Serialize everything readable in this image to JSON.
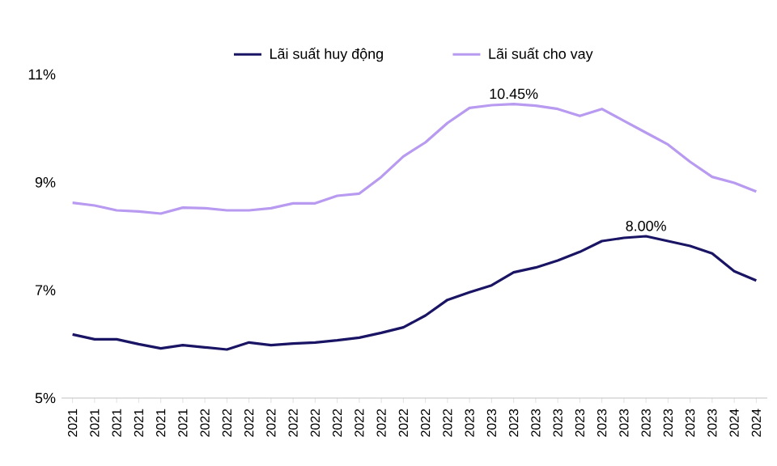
{
  "chart_data": {
    "type": "line",
    "categories": [
      "2021",
      "2021",
      "2021",
      "2021",
      "2021",
      "2021",
      "2022",
      "2022",
      "2022",
      "2022",
      "2022",
      "2022",
      "2022",
      "2022",
      "2022",
      "2022",
      "2022",
      "2022",
      "2023",
      "2023",
      "2023",
      "2023",
      "2023",
      "2023",
      "2023",
      "2023",
      "2023",
      "2023",
      "2023",
      "2023",
      "2024",
      "2024"
    ],
    "series": [
      {
        "name": "Lãi suất huy động",
        "color": "#1a1464",
        "values": [
          6.18,
          6.09,
          6.09,
          6.0,
          5.92,
          5.98,
          5.94,
          5.9,
          6.03,
          5.98,
          6.01,
          6.03,
          6.07,
          6.12,
          6.21,
          6.31,
          6.53,
          6.82,
          6.96,
          7.09,
          7.33,
          7.42,
          7.55,
          7.71,
          7.91,
          7.97,
          8.0,
          7.91,
          7.82,
          7.68,
          7.35,
          7.18
        ],
        "value_labels": [
          null,
          null,
          null,
          null,
          null,
          null,
          null,
          null,
          null,
          null,
          null,
          null,
          null,
          null,
          null,
          null,
          null,
          null,
          null,
          null,
          null,
          null,
          null,
          null,
          null,
          null,
          "8.00%",
          null,
          null,
          null,
          null,
          null
        ]
      },
      {
        "name": "Lãi suất cho vay",
        "color": "#b89af0",
        "values": [
          8.62,
          8.57,
          8.48,
          8.46,
          8.42,
          8.53,
          8.52,
          8.48,
          8.48,
          8.52,
          8.61,
          8.61,
          8.75,
          8.79,
          9.1,
          9.48,
          9.74,
          10.1,
          10.38,
          10.43,
          10.45,
          10.42,
          10.36,
          10.23,
          10.36,
          10.14,
          9.92,
          9.7,
          9.38,
          9.1,
          8.99,
          8.83
        ],
        "value_labels": [
          null,
          null,
          null,
          null,
          null,
          null,
          null,
          null,
          null,
          null,
          null,
          null,
          null,
          null,
          null,
          null,
          null,
          null,
          null,
          null,
          "10.45%",
          null,
          null,
          null,
          null,
          null,
          null,
          null,
          null,
          null,
          null,
          null
        ]
      }
    ],
    "ylim": [
      5,
      11
    ],
    "yticks": [
      {
        "value": 5,
        "label": "5%"
      },
      {
        "value": 7,
        "label": "7%"
      },
      {
        "value": 9,
        "label": "9%"
      },
      {
        "value": 11,
        "label": "11%"
      }
    ],
    "legend": "top",
    "marker": "none",
    "line_style": "solid",
    "grid": false
  }
}
